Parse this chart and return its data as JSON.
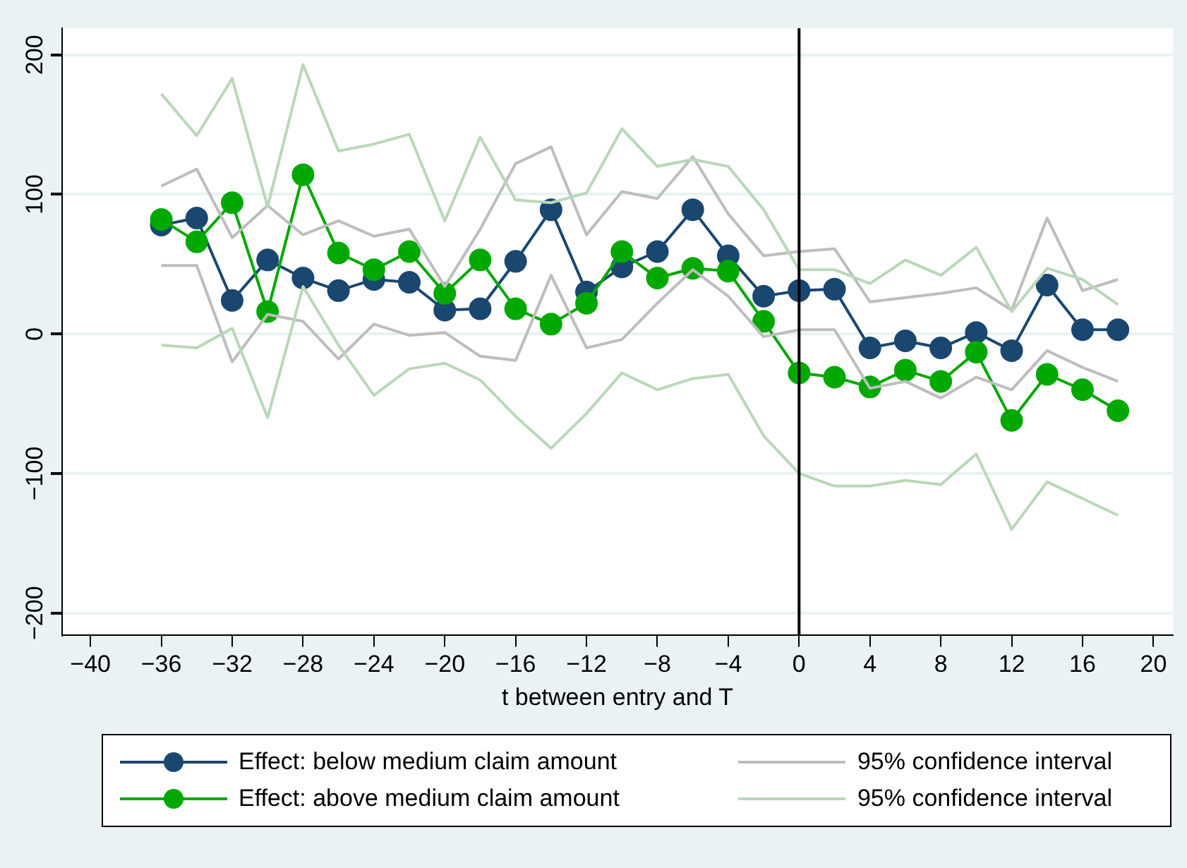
{
  "chart_data": {
    "type": "line",
    "xlabel": "t between entry and T",
    "x": [
      -36,
      -34,
      -32,
      -30,
      -28,
      -26,
      -24,
      -22,
      -20,
      -18,
      -16,
      -14,
      -12,
      -10,
      -8,
      -6,
      -4,
      -2,
      0,
      2,
      4,
      6,
      8,
      10,
      12,
      14,
      16,
      18
    ],
    "series": [
      {
        "name": "Effect: below medium claim amount",
        "color": "#1a476f",
        "marker": "circle",
        "values": [
          78,
          83,
          24,
          53,
          40,
          31,
          39,
          37,
          17,
          18,
          52,
          89,
          30,
          48,
          59,
          89,
          56,
          27,
          31,
          32,
          -10,
          -5,
          -10,
          1,
          -12,
          35,
          3,
          3
        ]
      },
      {
        "name": "Effect: above medium claim amount",
        "color": "#00a800",
        "marker": "circle",
        "values": [
          82,
          66,
          94,
          16,
          114,
          58,
          46,
          59,
          29,
          53,
          18,
          7,
          22,
          59,
          40,
          47,
          45,
          9,
          -28,
          -31,
          -38,
          -26,
          -34,
          -13,
          -62,
          -29,
          -40,
          -55
        ]
      },
      {
        "name": "95% confidence interval",
        "color": "#bdbdbd",
        "marker": "none",
        "values": [
          106,
          118,
          69,
          92,
          71,
          81,
          70,
          75,
          34,
          75,
          122,
          134,
          71,
          102,
          97,
          127,
          86,
          56,
          59,
          61,
          23,
          26,
          29,
          33,
          17,
          83,
          31,
          39
        ]
      },
      {
        "color": "#bdbdbd",
        "marker": "none",
        "values": [
          49,
          49,
          -20,
          14,
          9,
          -18,
          7,
          -1,
          1,
          -16,
          -19,
          42,
          -10,
          -4,
          22,
          46,
          27,
          -2,
          3,
          3,
          -39,
          -34,
          -46,
          -31,
          -40,
          -12,
          -24,
          -34
        ]
      },
      {
        "name": "95% confidence interval",
        "color": "#b8d8b8",
        "marker": "none",
        "values": [
          172,
          142,
          183,
          91,
          193,
          131,
          136,
          143,
          81,
          141,
          96,
          94,
          101,
          147,
          120,
          125,
          120,
          89,
          46,
          46,
          36,
          53,
          42,
          62,
          16,
          47,
          39,
          21
        ]
      },
      {
        "color": "#b8d8b8",
        "marker": "none",
        "values": [
          -8,
          -10,
          4,
          -60,
          34,
          -8,
          -44,
          -25,
          -21,
          -33,
          -59,
          -82,
          -57,
          -28,
          -40,
          -32,
          -29,
          -73,
          -100,
          -109,
          -109,
          -105,
          -108,
          -86,
          -140,
          -106,
          -118,
          -130
        ]
      }
    ],
    "xlim": [
      -41.6,
      21.1
    ],
    "xticks": [
      {
        "value": -40,
        "label": "−40"
      },
      {
        "value": -36,
        "label": "−36"
      },
      {
        "value": -32,
        "label": "−32"
      },
      {
        "value": -28,
        "label": "−28"
      },
      {
        "value": -24,
        "label": "−24"
      },
      {
        "value": -20,
        "label": "−20"
      },
      {
        "value": -16,
        "label": "−16"
      },
      {
        "value": -12,
        "label": "−12"
      },
      {
        "value": -8,
        "label": "−8"
      },
      {
        "value": -4,
        "label": "−4"
      },
      0,
      4,
      8,
      12,
      16,
      20
    ],
    "ylim": [
      -216,
      219
    ],
    "yticks": [
      {
        "value": -200,
        "label": "−200"
      },
      {
        "value": -100,
        "label": "−100"
      },
      0,
      100,
      200
    ],
    "ref_lines": [
      {
        "axis": "x",
        "value": 0,
        "color": "#000000"
      }
    ],
    "grid": "y",
    "legend": "bottom",
    "line_style": "solid"
  }
}
